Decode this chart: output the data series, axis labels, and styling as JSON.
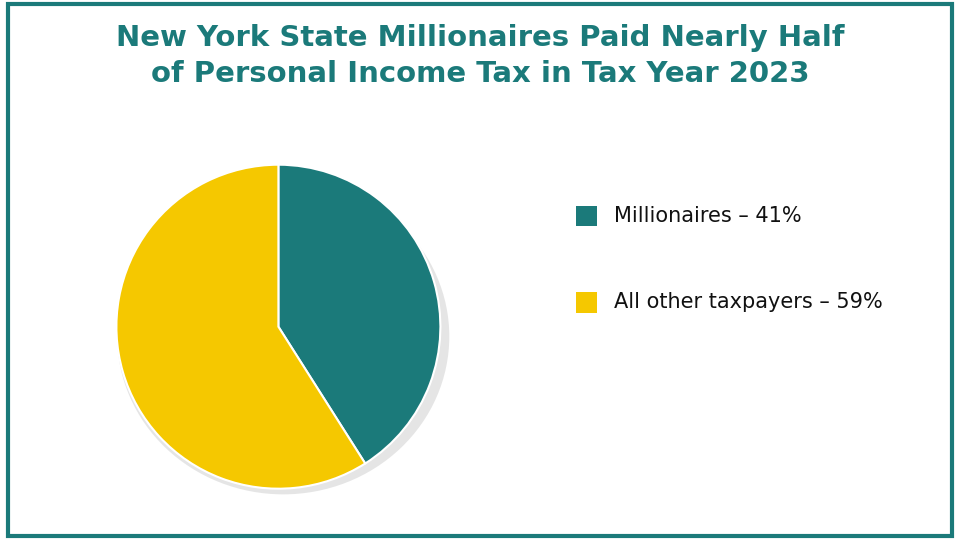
{
  "title": "New York State Millionaires Paid Nearly Half\nof Personal Income Tax in Tax Year 2023",
  "title_color": "#1b7a7a",
  "title_fontsize": 21,
  "slices": [
    41,
    59
  ],
  "labels": [
    "Millionaires – 41%",
    "All other taxpayers – 59%"
  ],
  "colors": [
    "#1b7a7a",
    "#f5c800"
  ],
  "startangle": 90,
  "background_color": "#ffffff",
  "border_color": "#1b7a7a",
  "border_linewidth": 3,
  "legend_fontsize": 15,
  "legend_square_size": 0.038,
  "shadow_color": "#cccccc",
  "text_color": "#111111"
}
